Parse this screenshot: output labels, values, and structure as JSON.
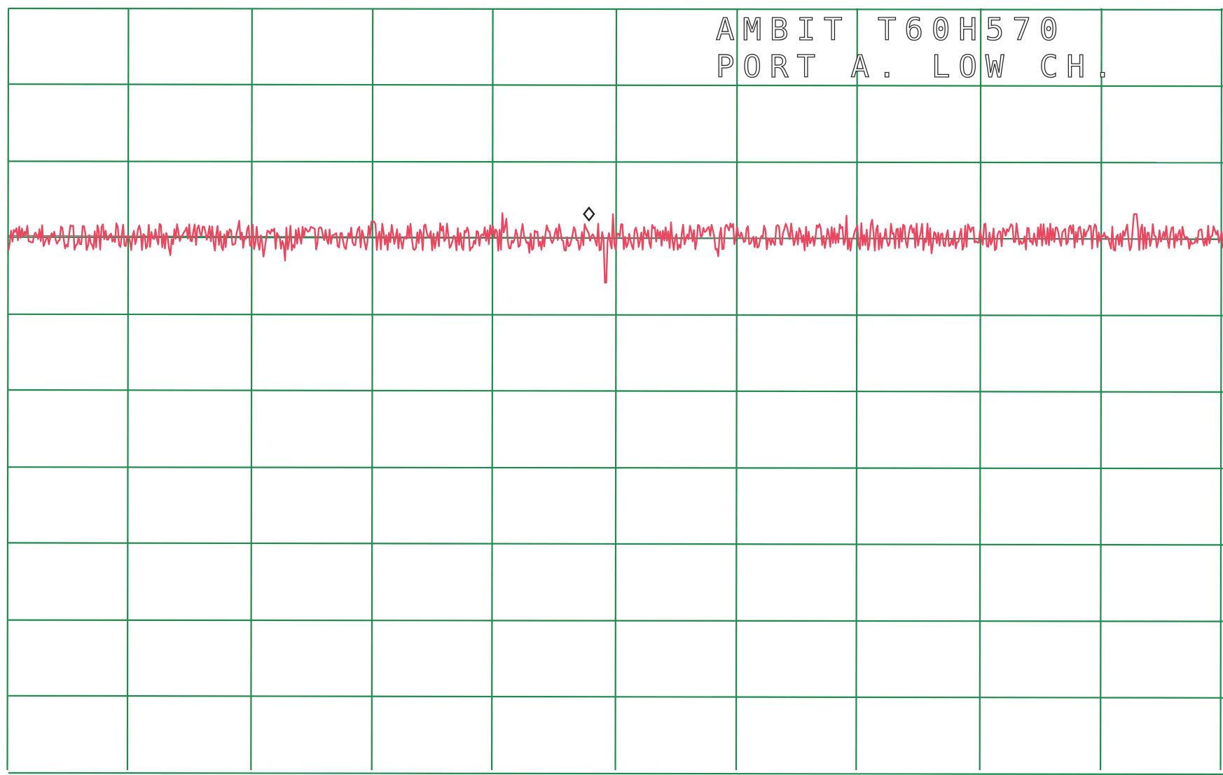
{
  "chart_data": {
    "type": "line",
    "title": "",
    "annotation_lines": [
      "AMBIT    T60H570",
      "PORT A.   LOW CH."
    ],
    "xlabel": "",
    "ylabel": "",
    "x_divisions": 10,
    "y_divisions": 10,
    "xlim": [
      0,
      10
    ],
    "ylim": [
      0,
      10
    ],
    "grid": true,
    "legend": "none",
    "series": [
      {
        "values_description_free": true,
        "color": "#e8475f",
        "baseline": 7.0,
        "noise_amplitude": 0.18,
        "notable_points": [
          {
            "x": 4.92,
            "y": 6.4
          },
          {
            "x": 3.0,
            "y": 7.2
          },
          {
            "x": 9.28,
            "y": 7.3
          }
        ]
      }
    ],
    "marker": {
      "x": 4.78,
      "y": 7.3,
      "shape": "diamond"
    }
  },
  "colors": {
    "grid": "#1f8a4c",
    "trace": "#e8475f",
    "text": "#2a2a2a",
    "background": "#ffffff"
  }
}
